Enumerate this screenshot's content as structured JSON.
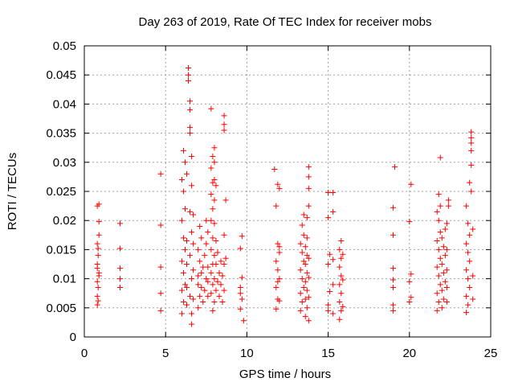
{
  "chart_data": {
    "type": "scatter",
    "title": "Day 263 of 2019, Rate Of TEC Index for receiver mobs",
    "xlabel": "GPS time / hours",
    "ylabel": "ROTI / TECUs",
    "xlim": [
      0,
      25
    ],
    "ylim": [
      0,
      0.05
    ],
    "x_ticks": [
      "0",
      "5",
      "10",
      "15",
      "20",
      "25"
    ],
    "y_ticks": [
      "0",
      "0.005",
      "0.01",
      "0.015",
      "0.02",
      "0.025",
      "0.03",
      "0.035",
      "0.04",
      "0.045",
      "0.05"
    ],
    "grid": true,
    "marker": "+",
    "marker_color": "#ff0000",
    "series": [
      {
        "name": "ROTI",
        "points": [
          [
            0.8,
            0.0055
          ],
          [
            0.8,
            0.007
          ],
          [
            0.85,
            0.0085
          ],
          [
            0.8,
            0.0095
          ],
          [
            0.9,
            0.011
          ],
          [
            0.8,
            0.0125
          ],
          [
            0.85,
            0.014
          ],
          [
            0.8,
            0.016
          ],
          [
            0.9,
            0.0175
          ],
          [
            0.8,
            0.0225
          ],
          [
            0.9,
            0.0228
          ],
          [
            0.85,
            0.0062
          ],
          [
            0.9,
            0.0105
          ],
          [
            0.8,
            0.0118
          ],
          [
            0.85,
            0.0152
          ],
          [
            0.9,
            0.0198
          ],
          [
            2.2,
            0.0085
          ],
          [
            2.2,
            0.01
          ],
          [
            2.2,
            0.0118
          ],
          [
            2.2,
            0.0152
          ],
          [
            2.2,
            0.0195
          ],
          [
            4.7,
            0.0045
          ],
          [
            4.7,
            0.0075
          ],
          [
            4.7,
            0.012
          ],
          [
            4.7,
            0.0192
          ],
          [
            4.7,
            0.028
          ],
          [
            6.0,
            0.004
          ],
          [
            6.1,
            0.006
          ],
          [
            6.0,
            0.008
          ],
          [
            6.2,
            0.009
          ],
          [
            6.1,
            0.011
          ],
          [
            6.0,
            0.013
          ],
          [
            6.2,
            0.015
          ],
          [
            6.1,
            0.017
          ],
          [
            6.0,
            0.02
          ],
          [
            6.2,
            0.022
          ],
          [
            6.1,
            0.025
          ],
          [
            6.0,
            0.027
          ],
          [
            6.2,
            0.03
          ],
          [
            6.1,
            0.032
          ],
          [
            6.3,
            0.0055
          ],
          [
            6.3,
            0.0085
          ],
          [
            6.3,
            0.0125
          ],
          [
            6.3,
            0.0165
          ],
          [
            6.3,
            0.028
          ],
          [
            6.4,
            0.045
          ],
          [
            6.4,
            0.0462
          ],
          [
            6.4,
            0.044
          ],
          [
            6.5,
            0.0405
          ],
          [
            6.5,
            0.039
          ],
          [
            6.5,
            0.036
          ],
          [
            6.5,
            0.035
          ],
          [
            6.6,
            0.031
          ],
          [
            6.6,
            0.026
          ],
          [
            6.5,
            0.0215
          ],
          [
            6.6,
            0.018
          ],
          [
            6.5,
            0.014
          ],
          [
            6.6,
            0.01
          ],
          [
            6.5,
            0.007
          ],
          [
            6.6,
            0.004
          ],
          [
            6.6,
            0.0022
          ],
          [
            6.7,
            0.0065
          ],
          [
            6.7,
            0.0115
          ],
          [
            6.7,
            0.016
          ],
          [
            6.7,
            0.021
          ],
          [
            7.0,
            0.005
          ],
          [
            7.1,
            0.007
          ],
          [
            7.0,
            0.009
          ],
          [
            7.2,
            0.011
          ],
          [
            7.1,
            0.013
          ],
          [
            7.0,
            0.015
          ],
          [
            7.2,
            0.017
          ],
          [
            7.1,
            0.019
          ],
          [
            7.0,
            0.0105
          ],
          [
            7.2,
            0.0085
          ],
          [
            7.3,
            0.006
          ],
          [
            7.3,
            0.012
          ],
          [
            7.4,
            0.008
          ],
          [
            7.4,
            0.014
          ],
          [
            7.5,
            0.01
          ],
          [
            7.5,
            0.016
          ],
          [
            7.5,
            0.02
          ],
          [
            7.6,
            0.007
          ],
          [
            7.6,
            0.012
          ],
          [
            7.6,
            0.018
          ],
          [
            7.6,
            0.0095
          ],
          [
            7.8,
            0.0392
          ],
          [
            7.8,
            0.029
          ],
          [
            7.9,
            0.031
          ],
          [
            7.9,
            0.0265
          ],
          [
            7.8,
            0.0245
          ],
          [
            8.0,
            0.0325
          ],
          [
            8.0,
            0.03
          ],
          [
            8.0,
            0.027
          ],
          [
            8.0,
            0.0235
          ],
          [
            7.9,
            0.022
          ],
          [
            7.8,
            0.02
          ],
          [
            8.0,
            0.0195
          ],
          [
            7.9,
            0.017
          ],
          [
            7.8,
            0.015
          ],
          [
            8.0,
            0.014
          ],
          [
            7.9,
            0.0125
          ],
          [
            7.8,
            0.011
          ],
          [
            8.0,
            0.01
          ],
          [
            7.9,
            0.009
          ],
          [
            7.8,
            0.0075
          ],
          [
            8.0,
            0.006
          ],
          [
            7.9,
            0.0045
          ],
          [
            8.1,
            0.008
          ],
          [
            8.1,
            0.0125
          ],
          [
            8.1,
            0.0165
          ],
          [
            8.1,
            0.026
          ],
          [
            8.2,
            0.0095
          ],
          [
            8.2,
            0.0145
          ],
          [
            8.3,
            0.007
          ],
          [
            8.3,
            0.011
          ],
          [
            8.4,
            0.009
          ],
          [
            8.4,
            0.013
          ],
          [
            8.5,
            0.006
          ],
          [
            8.5,
            0.0105
          ],
          [
            8.6,
            0.008
          ],
          [
            8.6,
            0.0125
          ],
          [
            8.6,
            0.0175
          ],
          [
            8.6,
            0.038
          ],
          [
            8.6,
            0.0365
          ],
          [
            8.6,
            0.0355
          ],
          [
            8.7,
            0.0135
          ],
          [
            8.7,
            0.0235
          ],
          [
            9.6,
            0.0048
          ],
          [
            9.7,
            0.0065
          ],
          [
            9.6,
            0.0075
          ],
          [
            9.7,
            0.0102
          ],
          [
            9.6,
            0.0152
          ],
          [
            9.7,
            0.0173
          ],
          [
            9.8,
            0.0028
          ],
          [
            9.6,
            0.0085
          ],
          [
            11.8,
            0.0048
          ],
          [
            11.9,
            0.0065
          ],
          [
            11.8,
            0.0085
          ],
          [
            12.0,
            0.01
          ],
          [
            11.9,
            0.0115
          ],
          [
            11.8,
            0.013
          ],
          [
            12.0,
            0.0145
          ],
          [
            11.9,
            0.016
          ],
          [
            11.8,
            0.0225
          ],
          [
            12.0,
            0.0255
          ],
          [
            11.9,
            0.0262
          ],
          [
            11.7,
            0.0288
          ],
          [
            12.0,
            0.0062
          ],
          [
            11.9,
            0.0095
          ],
          [
            12.0,
            0.0155
          ],
          [
            13.3,
            0.0045
          ],
          [
            13.4,
            0.006
          ],
          [
            13.3,
            0.0075
          ],
          [
            13.5,
            0.0085
          ],
          [
            13.4,
            0.01
          ],
          [
            13.3,
            0.0115
          ],
          [
            13.5,
            0.013
          ],
          [
            13.4,
            0.0145
          ],
          [
            13.3,
            0.016
          ],
          [
            13.5,
            0.0175
          ],
          [
            13.4,
            0.0192
          ],
          [
            13.6,
            0.0035
          ],
          [
            13.6,
            0.0065
          ],
          [
            13.6,
            0.0095
          ],
          [
            13.6,
            0.0125
          ],
          [
            13.6,
            0.0155
          ],
          [
            13.7,
            0.005
          ],
          [
            13.7,
            0.008
          ],
          [
            13.7,
            0.011
          ],
          [
            13.7,
            0.014
          ],
          [
            13.7,
            0.017
          ],
          [
            13.7,
            0.0205
          ],
          [
            13.8,
            0.0028
          ],
          [
            13.8,
            0.0068
          ],
          [
            13.8,
            0.0102
          ],
          [
            13.8,
            0.0135
          ],
          [
            13.8,
            0.0225
          ],
          [
            13.8,
            0.0255
          ],
          [
            13.8,
            0.0275
          ],
          [
            13.8,
            0.0292
          ],
          [
            13.5,
            0.021
          ],
          [
            15.0,
            0.0045
          ],
          [
            15.0,
            0.0055
          ],
          [
            15.1,
            0.0078
          ],
          [
            15.0,
            0.0125
          ],
          [
            15.1,
            0.0142
          ],
          [
            15.0,
            0.0205
          ],
          [
            15.0,
            0.0248
          ],
          [
            15.3,
            0.0248
          ],
          [
            15.3,
            0.004
          ],
          [
            15.3,
            0.009
          ],
          [
            15.3,
            0.0133
          ],
          [
            15.3,
            0.0215
          ],
          [
            15.7,
            0.003
          ],
          [
            15.8,
            0.0045
          ],
          [
            15.7,
            0.006
          ],
          [
            15.8,
            0.0075
          ],
          [
            15.7,
            0.009
          ],
          [
            15.8,
            0.0105
          ],
          [
            15.7,
            0.012
          ],
          [
            15.8,
            0.0135
          ],
          [
            15.7,
            0.015
          ],
          [
            15.8,
            0.0165
          ],
          [
            15.9,
            0.0052
          ],
          [
            15.9,
            0.0098
          ],
          [
            15.9,
            0.0142
          ],
          [
            19.0,
            0.0045
          ],
          [
            19.0,
            0.0055
          ],
          [
            19.0,
            0.0085
          ],
          [
            19.0,
            0.0098
          ],
          [
            19.0,
            0.0118
          ],
          [
            19.0,
            0.0175
          ],
          [
            19.0,
            0.0222
          ],
          [
            19.1,
            0.0292
          ],
          [
            20.0,
            0.006
          ],
          [
            20.1,
            0.0068
          ],
          [
            20.0,
            0.0095
          ],
          [
            20.1,
            0.0108
          ],
          [
            20.0,
            0.0198
          ],
          [
            20.1,
            0.0262
          ],
          [
            21.7,
            0.0045
          ],
          [
            21.8,
            0.006
          ],
          [
            21.7,
            0.0075
          ],
          [
            21.9,
            0.009
          ],
          [
            21.8,
            0.0105
          ],
          [
            21.7,
            0.012
          ],
          [
            21.9,
            0.0135
          ],
          [
            21.8,
            0.015
          ],
          [
            21.7,
            0.0165
          ],
          [
            21.9,
            0.018
          ],
          [
            21.8,
            0.02
          ],
          [
            21.7,
            0.0215
          ],
          [
            21.9,
            0.0225
          ],
          [
            21.8,
            0.0245
          ],
          [
            21.9,
            0.0308
          ],
          [
            22.0,
            0.005
          ],
          [
            22.1,
            0.0065
          ],
          [
            22.0,
            0.008
          ],
          [
            22.2,
            0.0095
          ],
          [
            22.1,
            0.011
          ],
          [
            22.0,
            0.0125
          ],
          [
            22.2,
            0.014
          ],
          [
            22.1,
            0.0155
          ],
          [
            22.0,
            0.017
          ],
          [
            22.2,
            0.0185
          ],
          [
            22.3,
            0.006
          ],
          [
            22.3,
            0.0085
          ],
          [
            22.3,
            0.0115
          ],
          [
            22.3,
            0.015
          ],
          [
            22.3,
            0.0195
          ],
          [
            22.4,
            0.0235
          ],
          [
            22.4,
            0.0225
          ],
          [
            23.5,
            0.0042
          ],
          [
            23.6,
            0.0055
          ],
          [
            23.5,
            0.007
          ],
          [
            23.7,
            0.0085
          ],
          [
            23.6,
            0.01
          ],
          [
            23.5,
            0.0115
          ],
          [
            23.7,
            0.013
          ],
          [
            23.6,
            0.0145
          ],
          [
            23.5,
            0.016
          ],
          [
            23.7,
            0.0175
          ],
          [
            23.6,
            0.0195
          ],
          [
            23.5,
            0.0225
          ],
          [
            23.7,
            0.0265
          ],
          [
            23.8,
            0.025
          ],
          [
            23.8,
            0.0295
          ],
          [
            23.8,
            0.032
          ],
          [
            23.8,
            0.0333
          ],
          [
            23.8,
            0.0342
          ],
          [
            23.8,
            0.0352
          ],
          [
            23.9,
            0.0065
          ],
          [
            23.9,
            0.0105
          ],
          [
            23.9,
            0.0185
          ]
        ]
      }
    ]
  }
}
